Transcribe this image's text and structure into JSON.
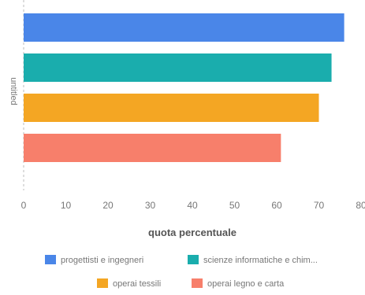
{
  "chart_data": {
    "type": "bar",
    "orientation": "horizontal",
    "category": "untitled",
    "series": [
      {
        "name": "progettisti e ingegneri",
        "value": 76,
        "color": "#4a86e8"
      },
      {
        "name": "scienze informatiche e chim...",
        "value": 73,
        "color": "#1aadad"
      },
      {
        "name": "operai tessili",
        "value": 70,
        "color": "#f4a623"
      },
      {
        "name": "operai legno e carta",
        "value": 61,
        "color": "#f77f6b"
      }
    ],
    "xlabel": "quota percentuale",
    "xlim": [
      0,
      80
    ],
    "xticks": [
      0,
      10,
      20,
      30,
      40,
      50,
      60,
      70,
      80
    ],
    "grid": false,
    "legend_position": "bottom"
  }
}
